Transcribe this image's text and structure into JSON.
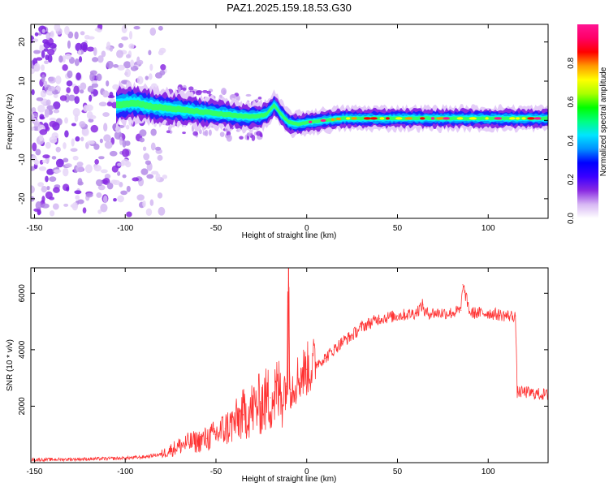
{
  "figure": {
    "title": "PAZ1.2025.159.18.53.G30"
  },
  "chart_data": [
    {
      "type": "heatmap",
      "xlabel": "Height of straight line (km)",
      "ylabel": "Frequency (Hz)",
      "xlim": [
        -152,
        133
      ],
      "ylim": [
        -25,
        24.5
      ],
      "xticks": [
        -150,
        -100,
        -50,
        0,
        50,
        100
      ],
      "yticks": [
        -20,
        -10,
        0,
        10,
        20
      ],
      "colorbar": {
        "label": "Normalized spectral amplitude",
        "range": [
          0,
          1
        ],
        "ticks": [
          0.0,
          0.2,
          0.4,
          0.6,
          0.8
        ],
        "colormap": [
          "#ffffff",
          "#d8b8f4",
          "#8a2be2",
          "#3b00ff",
          "#0000ff",
          "#0090ff",
          "#00e5ff",
          "#00ff80",
          "#00ff00",
          "#aaff00",
          "#ffff00",
          "#ff9900",
          "#ff0000",
          "#ff0066",
          "#ff1493"
        ]
      },
      "noise_region": {
        "x_range": [
          -152,
          -78
        ],
        "freq_spread_hz": 24
      },
      "ridge": {
        "description": "peak frequency vs height",
        "x": [
          -105,
          -95,
          -85,
          -75,
          -65,
          -55,
          -45,
          -35,
          -28,
          -22,
          -18,
          -14,
          -10,
          -5,
          0,
          10,
          20,
          40,
          60,
          80,
          100,
          120,
          133
        ],
        "freq_hz": [
          4.0,
          4.5,
          3.5,
          3.0,
          2.5,
          2.0,
          1.5,
          1.0,
          1.0,
          1.5,
          4.0,
          1.5,
          -0.5,
          -1.0,
          -0.5,
          0.0,
          0.5,
          0.5,
          0.5,
          0.5,
          0.5,
          0.5,
          0.5
        ]
      }
    },
    {
      "type": "line",
      "xlabel": "Height of straight line (km)",
      "ylabel": "SNR (10 * v/v)",
      "xlim": [
        -152,
        133
      ],
      "ylim": [
        0,
        6900
      ],
      "xticks": [
        -150,
        -100,
        -50,
        0,
        50,
        100
      ],
      "yticks": [
        2000,
        4000,
        6000
      ],
      "series": [
        {
          "color": "#ff3333",
          "x": [
            -152,
            -130,
            -110,
            -100,
            -90,
            -80,
            -75,
            -70,
            -65,
            -60,
            -55,
            -50,
            -45,
            -40,
            -35,
            -30,
            -25,
            -20,
            -15,
            -11,
            -10,
            -9,
            -5,
            0,
            5,
            10,
            15,
            20,
            25,
            30,
            40,
            50,
            60,
            64,
            65,
            70,
            80,
            85,
            86,
            90,
            100,
            110,
            115,
            116,
            117,
            120,
            125,
            133
          ],
          "y": [
            100,
            120,
            140,
            160,
            200,
            300,
            450,
            600,
            700,
            750,
            850,
            1000,
            1200,
            1400,
            1700,
            1900,
            2100,
            2300,
            2500,
            2700,
            6900,
            2600,
            3000,
            3300,
            3500,
            3700,
            4000,
            4300,
            4500,
            4800,
            5100,
            5200,
            5300,
            5600,
            5300,
            5300,
            5300,
            5400,
            6300,
            5300,
            5300,
            5200,
            5200,
            2500,
            2500,
            2500,
            2450,
            2400
          ]
        }
      ]
    }
  ]
}
